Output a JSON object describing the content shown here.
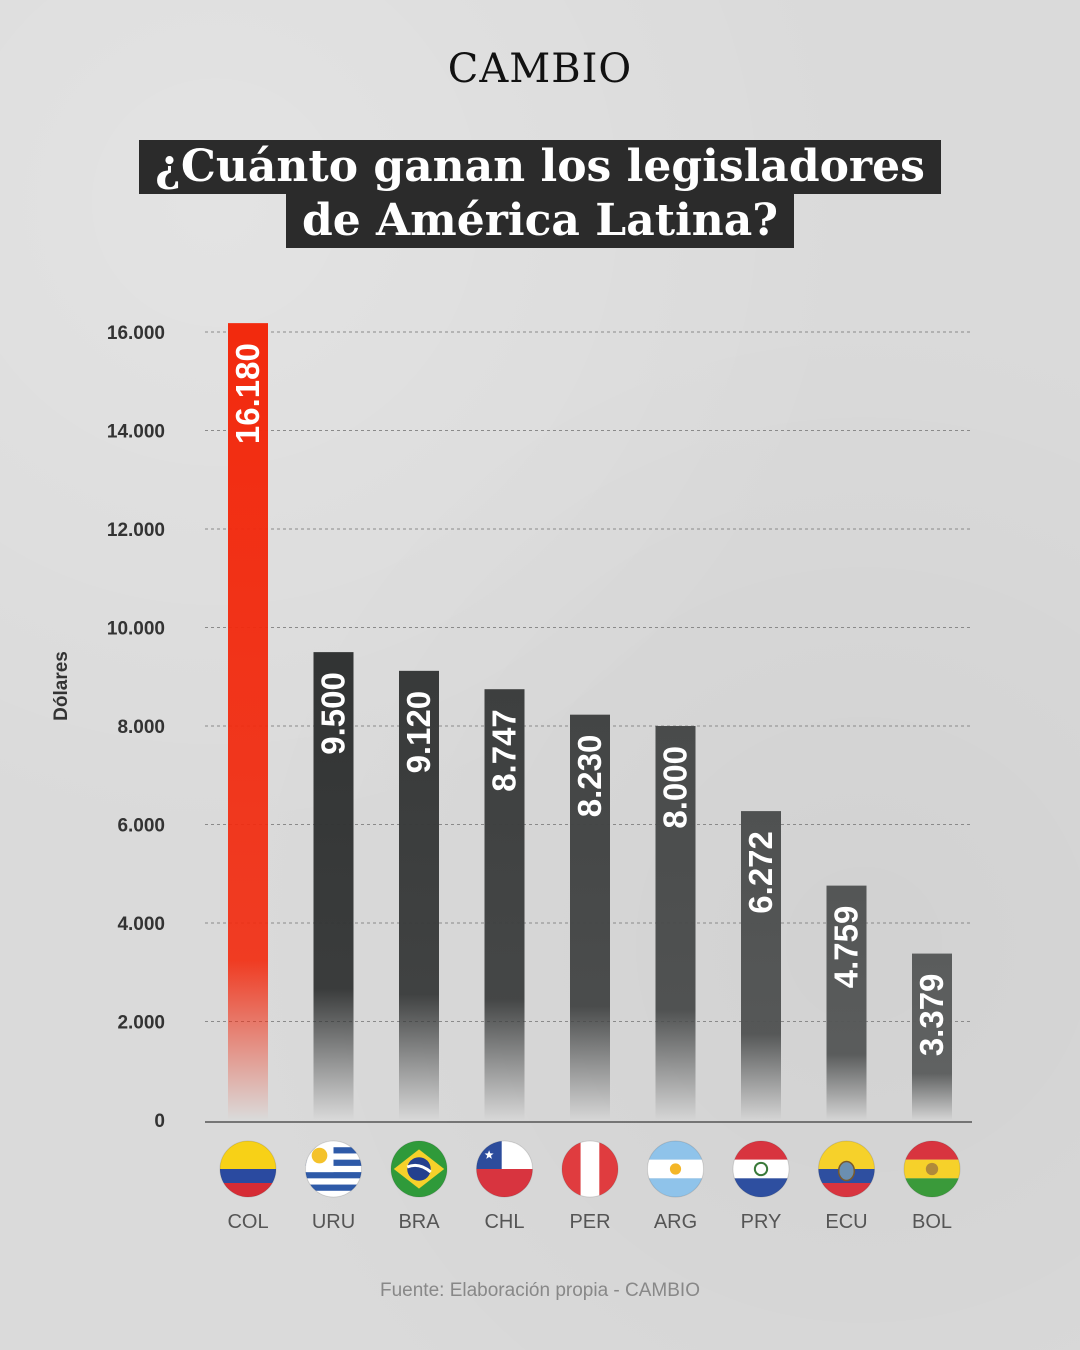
{
  "brand": "CAMBIO",
  "title_lines": [
    "¿Cuánto ganan los legisladores",
    "de América Latina?"
  ],
  "source": "Fuente: Elaboración propia - CAMBIO",
  "colors": {
    "highlight": "#f22a0e",
    "bar": "#2f3131",
    "bar_fade": "#4f5252",
    "text": "#333333"
  },
  "chart_data": {
    "type": "bar",
    "ylabel": "Dólares",
    "xlabel": "",
    "ylim": [
      0,
      16000
    ],
    "yticks": [
      0,
      2000,
      4000,
      6000,
      8000,
      10000,
      12000,
      14000,
      16000
    ],
    "ytick_labels": [
      "0",
      "2.000",
      "4.000",
      "6.000",
      "8.000",
      "10.000",
      "12.000",
      "14.000",
      "16.000"
    ],
    "grid": true,
    "categories": [
      "COL",
      "URU",
      "BRA",
      "CHL",
      "PER",
      "ARG",
      "PRY",
      "ECU",
      "BOL"
    ],
    "values": [
      16180,
      9500,
      9120,
      8747,
      8230,
      8000,
      6272,
      4759,
      3379
    ],
    "value_labels": [
      "16.180",
      "9.500",
      "9.120",
      "8.747",
      "8.230",
      "8.000",
      "6.272",
      "4.759",
      "3.379"
    ],
    "highlight": "COL",
    "flag_icons": [
      "colombia-flag-icon",
      "uruguay-flag-icon",
      "brazil-flag-icon",
      "chile-flag-icon",
      "peru-flag-icon",
      "argentina-flag-icon",
      "paraguay-flag-icon",
      "ecuador-flag-icon",
      "bolivia-flag-icon"
    ]
  }
}
